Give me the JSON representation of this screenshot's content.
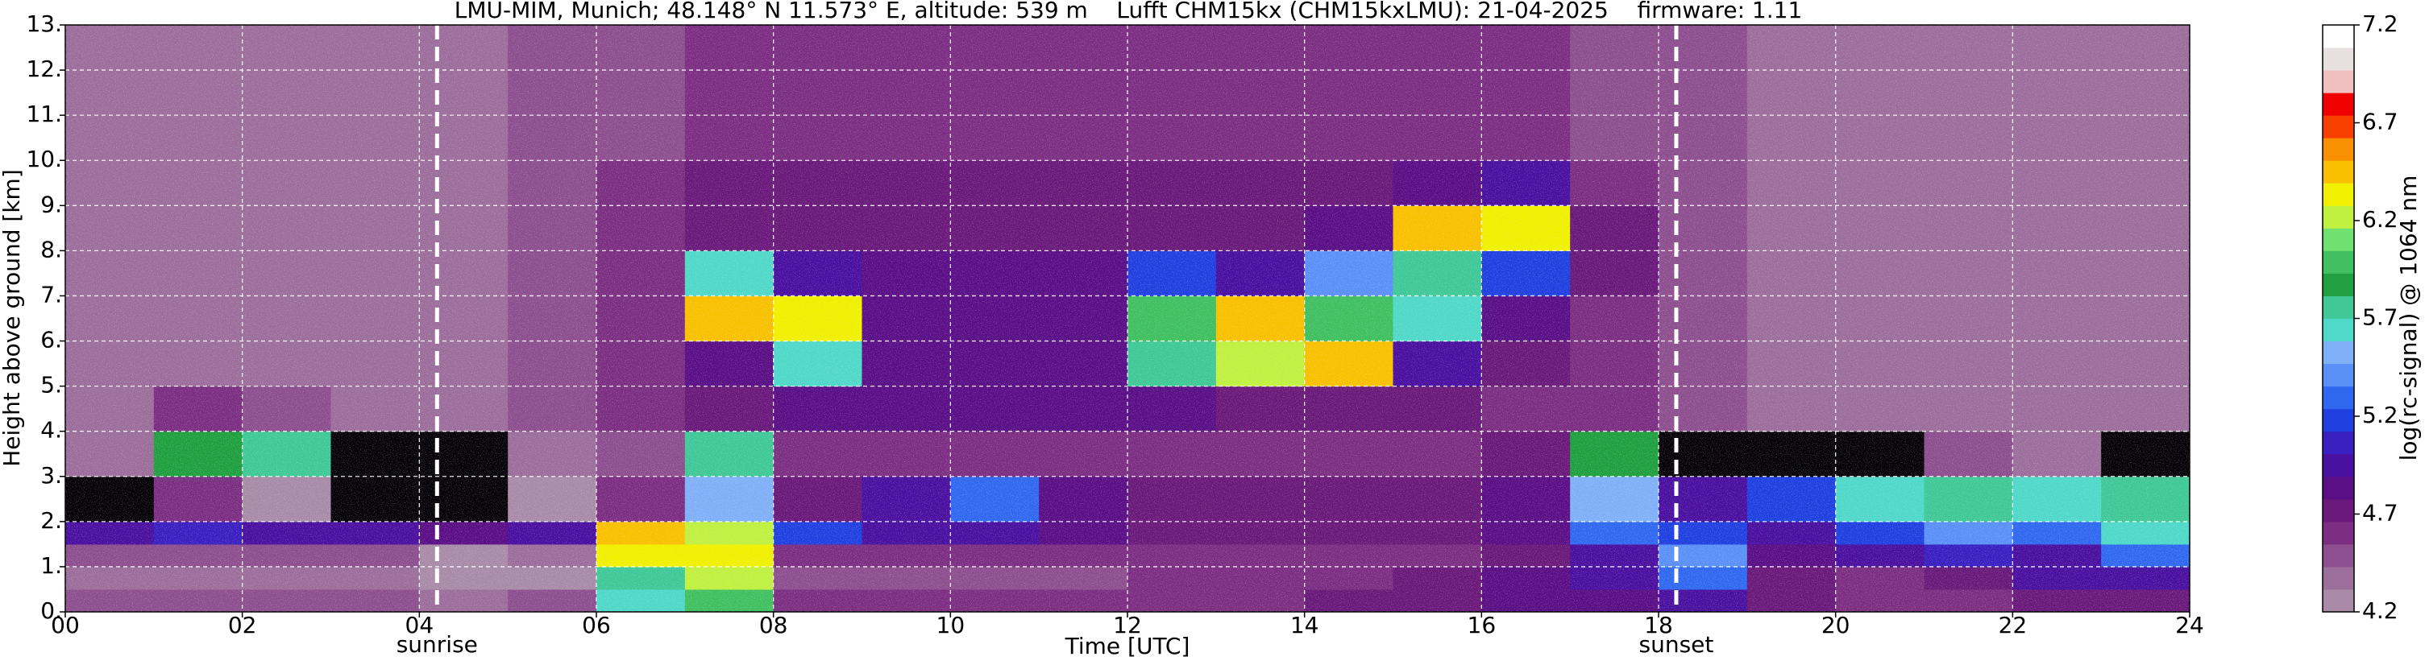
{
  "chart_data": {
    "type": "heatmap",
    "title": "LMU-MIM, Munich; 48.148° N 11.573° E, altitude: 539 m    Lufft CHM15kx (CHM15kxLMU): 21-04-2025    firmware: 1.11",
    "xlabel": "Time [UTC]",
    "ylabel": "Height above ground [km]",
    "colorbar_label": "log(rc-signal) @ 1064 nm",
    "xlim": [
      0,
      24
    ],
    "ylim": [
      0,
      13
    ],
    "xticks": [
      {
        "value": 0,
        "label": "00"
      },
      {
        "value": 2,
        "label": "02"
      },
      {
        "value": 4,
        "label": "04"
      },
      {
        "value": 6,
        "label": "06"
      },
      {
        "value": 8,
        "label": "08"
      },
      {
        "value": 10,
        "label": "10"
      },
      {
        "value": 12,
        "label": "12"
      },
      {
        "value": 14,
        "label": "14"
      },
      {
        "value": 16,
        "label": "16"
      },
      {
        "value": 18,
        "label": "18"
      },
      {
        "value": 20,
        "label": "20"
      },
      {
        "value": 22,
        "label": "22"
      },
      {
        "value": 24,
        "label": "24"
      }
    ],
    "yticks": [
      {
        "value": 0,
        "label": "0."
      },
      {
        "value": 1,
        "label": "1."
      },
      {
        "value": 2,
        "label": "2."
      },
      {
        "value": 3,
        "label": "3."
      },
      {
        "value": 4,
        "label": "4."
      },
      {
        "value": 5,
        "label": "5."
      },
      {
        "value": 6,
        "label": "6."
      },
      {
        "value": 7,
        "label": "7."
      },
      {
        "value": 8,
        "label": "8."
      },
      {
        "value": 9,
        "label": "9."
      },
      {
        "value": 10,
        "label": "10."
      },
      {
        "value": 11,
        "label": "11."
      },
      {
        "value": 12,
        "label": "12."
      },
      {
        "value": 13,
        "label": "13."
      }
    ],
    "grid": true,
    "clim": [
      4.2,
      7.2
    ],
    "cticks": [
      4.2,
      4.7,
      5.2,
      5.7,
      6.2,
      6.7,
      7.2
    ],
    "under_color": "#050308",
    "colors": [
      "#a98ba8",
      "#9c6e9b",
      "#8d4f8f",
      "#7c2f82",
      "#6a1a7a",
      "#5a0f86",
      "#4a10a0",
      "#3a20c0",
      "#2040e0",
      "#3068f0",
      "#5a90f8",
      "#80b0f8",
      "#50d8c8",
      "#40c898",
      "#20a040",
      "#40c060",
      "#70e070",
      "#c0f040",
      "#f0f000",
      "#f8c000",
      "#f89000",
      "#f84000",
      "#f00000",
      "#f0c0c0",
      "#e8e0e0",
      "#ffffff"
    ],
    "x_edges": [
      0,
      1,
      2,
      3,
      4,
      5,
      6,
      7,
      8,
      9,
      10,
      11,
      12,
      13,
      14,
      15,
      16,
      17,
      18,
      19,
      20,
      21,
      22,
      23,
      24
    ],
    "y_edges": [
      0,
      0.5,
      1,
      1.5,
      2,
      3,
      4,
      5,
      6,
      7,
      8,
      9,
      10,
      13
    ],
    "z": [
      [
        4.5,
        4.5,
        4.5,
        4.5,
        4.4,
        4.5,
        5.6,
        6.0,
        4.6,
        4.6,
        4.6,
        4.6,
        4.6,
        4.6,
        4.7,
        4.7,
        4.8,
        4.8,
        4.9,
        4.7,
        4.6,
        4.6,
        4.7,
        4.7
      ],
      [
        4.4,
        4.4,
        4.4,
        4.4,
        4.3,
        4.3,
        5.8,
        6.2,
        4.5,
        4.5,
        4.5,
        4.5,
        4.6,
        4.6,
        4.6,
        4.7,
        4.8,
        4.9,
        5.3,
        4.7,
        4.6,
        4.7,
        4.9,
        5.0
      ],
      [
        4.5,
        4.5,
        4.5,
        4.5,
        4.3,
        4.4,
        6.3,
        6.3,
        4.6,
        4.6,
        4.6,
        4.6,
        4.6,
        4.6,
        4.6,
        4.6,
        4.7,
        4.9,
        5.4,
        4.8,
        4.9,
        5.1,
        5.0,
        5.3
      ],
      [
        5.0,
        5.1,
        5.0,
        4.9,
        4.8,
        5.0,
        6.4,
        6.2,
        5.2,
        5.0,
        4.9,
        4.8,
        4.7,
        4.7,
        4.7,
        4.7,
        4.8,
        5.3,
        5.2,
        4.9,
        5.2,
        5.4,
        5.3,
        5.6
      ],
      [
        4.0,
        4.6,
        4.2,
        4.0,
        4.0,
        4.3,
        4.6,
        5.5,
        4.7,
        5.0,
        5.3,
        4.8,
        4.7,
        4.7,
        4.7,
        4.7,
        4.8,
        5.5,
        5.0,
        5.2,
        5.6,
        5.8,
        5.6,
        5.8
      ],
      [
        4.4,
        5.9,
        5.8,
        4.0,
        4.0,
        4.4,
        4.5,
        5.7,
        4.6,
        4.6,
        4.6,
        4.6,
        4.6,
        4.6,
        4.6,
        4.6,
        4.7,
        5.9,
        4.0,
        4.0,
        4.0,
        4.5,
        4.4,
        4.0
      ],
      [
        4.4,
        4.6,
        4.5,
        4.4,
        4.4,
        4.5,
        4.6,
        4.7,
        4.8,
        4.8,
        4.8,
        4.8,
        4.8,
        4.7,
        4.7,
        4.7,
        4.6,
        4.6,
        4.5,
        4.4,
        4.4,
        4.4,
        4.4,
        4.4
      ],
      [
        4.4,
        4.4,
        4.4,
        4.4,
        4.4,
        4.5,
        4.6,
        4.8,
        5.6,
        4.8,
        4.8,
        4.8,
        5.8,
        6.2,
        6.5,
        4.9,
        4.7,
        4.6,
        4.5,
        4.4,
        4.4,
        4.4,
        4.4,
        4.4
      ],
      [
        4.4,
        4.4,
        4.4,
        4.4,
        4.4,
        4.5,
        4.6,
        6.4,
        6.3,
        4.8,
        4.8,
        4.8,
        6.0,
        6.5,
        6.0,
        5.6,
        4.8,
        4.6,
        4.5,
        4.4,
        4.4,
        4.4,
        4.4,
        4.4
      ],
      [
        4.4,
        4.4,
        4.4,
        4.4,
        4.4,
        4.5,
        4.6,
        5.6,
        4.9,
        4.8,
        4.8,
        4.8,
        5.2,
        5.0,
        5.4,
        5.8,
        5.2,
        4.7,
        4.5,
        4.4,
        4.4,
        4.4,
        4.4,
        4.4
      ],
      [
        4.4,
        4.4,
        4.4,
        4.4,
        4.4,
        4.5,
        4.6,
        4.7,
        4.7,
        4.7,
        4.7,
        4.7,
        4.7,
        4.7,
        4.8,
        6.5,
        6.3,
        4.7,
        4.5,
        4.4,
        4.4,
        4.4,
        4.4,
        4.4
      ],
      [
        4.4,
        4.4,
        4.4,
        4.4,
        4.4,
        4.5,
        4.6,
        4.7,
        4.7,
        4.7,
        4.7,
        4.7,
        4.7,
        4.7,
        4.7,
        4.8,
        4.9,
        4.6,
        4.5,
        4.4,
        4.4,
        4.4,
        4.4,
        4.4
      ],
      [
        4.4,
        4.4,
        4.4,
        4.4,
        4.4,
        4.5,
        4.5,
        4.6,
        4.6,
        4.6,
        4.6,
        4.6,
        4.6,
        4.6,
        4.6,
        4.6,
        4.6,
        4.5,
        4.5,
        4.4,
        4.4,
        4.4,
        4.4,
        4.4
      ]
    ],
    "vlines": [
      {
        "x": 4.2,
        "label": "sunrise"
      },
      {
        "x": 18.2,
        "label": "sunset"
      }
    ]
  }
}
